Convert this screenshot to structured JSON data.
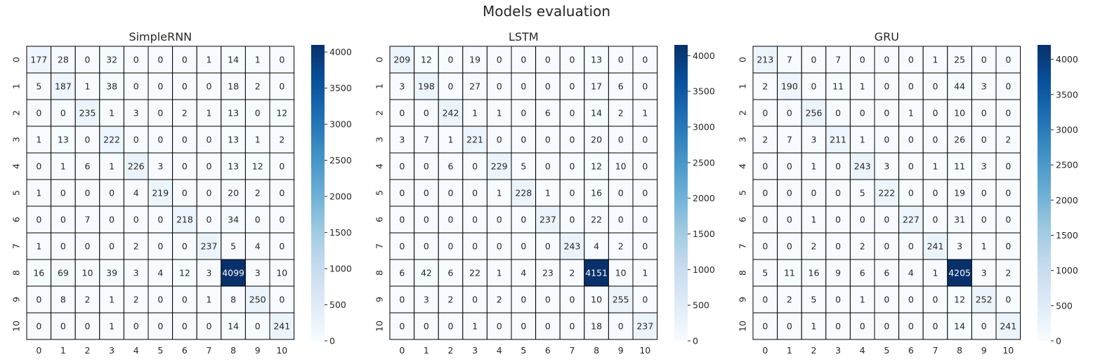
{
  "figure": {
    "suptitle": "Models evaluation"
  },
  "colormap": {
    "name": "Blues",
    "low": "#f7fbff",
    "high": "#08306b"
  },
  "chart_data": [
    {
      "type": "heatmap",
      "title": "SimpleRNN",
      "x_ticks": [
        "0",
        "1",
        "2",
        "3",
        "4",
        "5",
        "6",
        "7",
        "8",
        "9",
        "10"
      ],
      "y_ticks": [
        "0",
        "1",
        "2",
        "3",
        "4",
        "5",
        "6",
        "7",
        "8",
        "9",
        "10"
      ],
      "colorbar": {
        "vmin": 0,
        "vmax": 4099,
        "ticks": [
          0,
          500,
          1000,
          1500,
          2000,
          2500,
          3000,
          3500,
          4000
        ]
      },
      "matrix": [
        [
          177,
          28,
          0,
          32,
          0,
          0,
          0,
          1,
          14,
          1,
          0
        ],
        [
          5,
          187,
          1,
          38,
          0,
          0,
          0,
          0,
          18,
          2,
          0
        ],
        [
          0,
          0,
          235,
          1,
          3,
          0,
          2,
          1,
          13,
          0,
          12
        ],
        [
          1,
          13,
          0,
          222,
          0,
          0,
          0,
          0,
          13,
          1,
          2
        ],
        [
          0,
          1,
          6,
          1,
          226,
          3,
          0,
          0,
          13,
          12,
          0
        ],
        [
          1,
          0,
          0,
          0,
          4,
          219,
          0,
          0,
          20,
          2,
          0
        ],
        [
          0,
          0,
          7,
          0,
          0,
          0,
          218,
          0,
          34,
          0,
          0
        ],
        [
          1,
          0,
          0,
          0,
          2,
          0,
          0,
          237,
          5,
          4,
          0
        ],
        [
          16,
          69,
          10,
          39,
          3,
          4,
          12,
          3,
          4099,
          3,
          10
        ],
        [
          0,
          8,
          2,
          1,
          2,
          0,
          0,
          1,
          8,
          250,
          0
        ],
        [
          0,
          0,
          0,
          1,
          0,
          0,
          0,
          0,
          14,
          0,
          241
        ]
      ]
    },
    {
      "type": "heatmap",
      "title": "LSTM",
      "x_ticks": [
        "0",
        "1",
        "2",
        "3",
        "4",
        "5",
        "6",
        "7",
        "8",
        "9",
        "10"
      ],
      "y_ticks": [
        "0",
        "1",
        "2",
        "3",
        "4",
        "5",
        "6",
        "7",
        "8",
        "9",
        "10"
      ],
      "colorbar": {
        "vmin": 0,
        "vmax": 4151,
        "ticks": [
          0,
          500,
          1000,
          1500,
          2000,
          2500,
          3000,
          3500,
          4000
        ]
      },
      "matrix": [
        [
          209,
          12,
          0,
          19,
          0,
          0,
          0,
          0,
          13,
          0,
          0
        ],
        [
          3,
          198,
          0,
          27,
          0,
          0,
          0,
          0,
          17,
          6,
          0
        ],
        [
          0,
          0,
          242,
          1,
          1,
          0,
          6,
          0,
          14,
          2,
          1
        ],
        [
          3,
          7,
          1,
          221,
          0,
          0,
          0,
          0,
          20,
          0,
          0
        ],
        [
          0,
          0,
          6,
          0,
          229,
          5,
          0,
          0,
          12,
          10,
          0
        ],
        [
          0,
          0,
          0,
          0,
          1,
          228,
          1,
          0,
          16,
          0,
          0
        ],
        [
          0,
          0,
          0,
          0,
          0,
          0,
          237,
          0,
          22,
          0,
          0
        ],
        [
          0,
          0,
          0,
          0,
          0,
          0,
          0,
          243,
          4,
          2,
          0
        ],
        [
          6,
          42,
          6,
          22,
          1,
          4,
          23,
          2,
          4151,
          10,
          1
        ],
        [
          0,
          3,
          2,
          0,
          2,
          0,
          0,
          0,
          10,
          255,
          0
        ],
        [
          0,
          0,
          0,
          1,
          0,
          0,
          0,
          0,
          18,
          0,
          237
        ]
      ]
    },
    {
      "type": "heatmap",
      "title": "GRU",
      "x_ticks": [
        "0",
        "1",
        "2",
        "3",
        "4",
        "5",
        "6",
        "7",
        "8",
        "9",
        "10"
      ],
      "y_ticks": [
        "0",
        "1",
        "2",
        "3",
        "4",
        "5",
        "6",
        "7",
        "8",
        "9",
        "10"
      ],
      "colorbar": {
        "vmin": 0,
        "vmax": 4205,
        "ticks": [
          0,
          500,
          1000,
          1500,
          2000,
          2500,
          3000,
          3500,
          4000
        ]
      },
      "matrix": [
        [
          213,
          7,
          0,
          7,
          0,
          0,
          0,
          1,
          25,
          0,
          0
        ],
        [
          2,
          190,
          0,
          11,
          1,
          0,
          0,
          0,
          44,
          3,
          0
        ],
        [
          0,
          0,
          256,
          0,
          0,
          0,
          1,
          0,
          10,
          0,
          0
        ],
        [
          2,
          7,
          3,
          211,
          1,
          0,
          0,
          0,
          26,
          0,
          2
        ],
        [
          0,
          0,
          1,
          0,
          243,
          3,
          0,
          1,
          11,
          3,
          0
        ],
        [
          0,
          0,
          0,
          0,
          5,
          222,
          0,
          0,
          19,
          0,
          0
        ],
        [
          0,
          0,
          1,
          0,
          0,
          0,
          227,
          0,
          31,
          0,
          0
        ],
        [
          0,
          0,
          2,
          0,
          2,
          0,
          0,
          241,
          3,
          1,
          0
        ],
        [
          5,
          11,
          16,
          9,
          6,
          6,
          4,
          1,
          4205,
          3,
          2
        ],
        [
          0,
          2,
          5,
          0,
          1,
          0,
          0,
          0,
          12,
          252,
          0
        ],
        [
          0,
          0,
          1,
          0,
          0,
          0,
          0,
          0,
          14,
          0,
          241
        ]
      ]
    }
  ]
}
